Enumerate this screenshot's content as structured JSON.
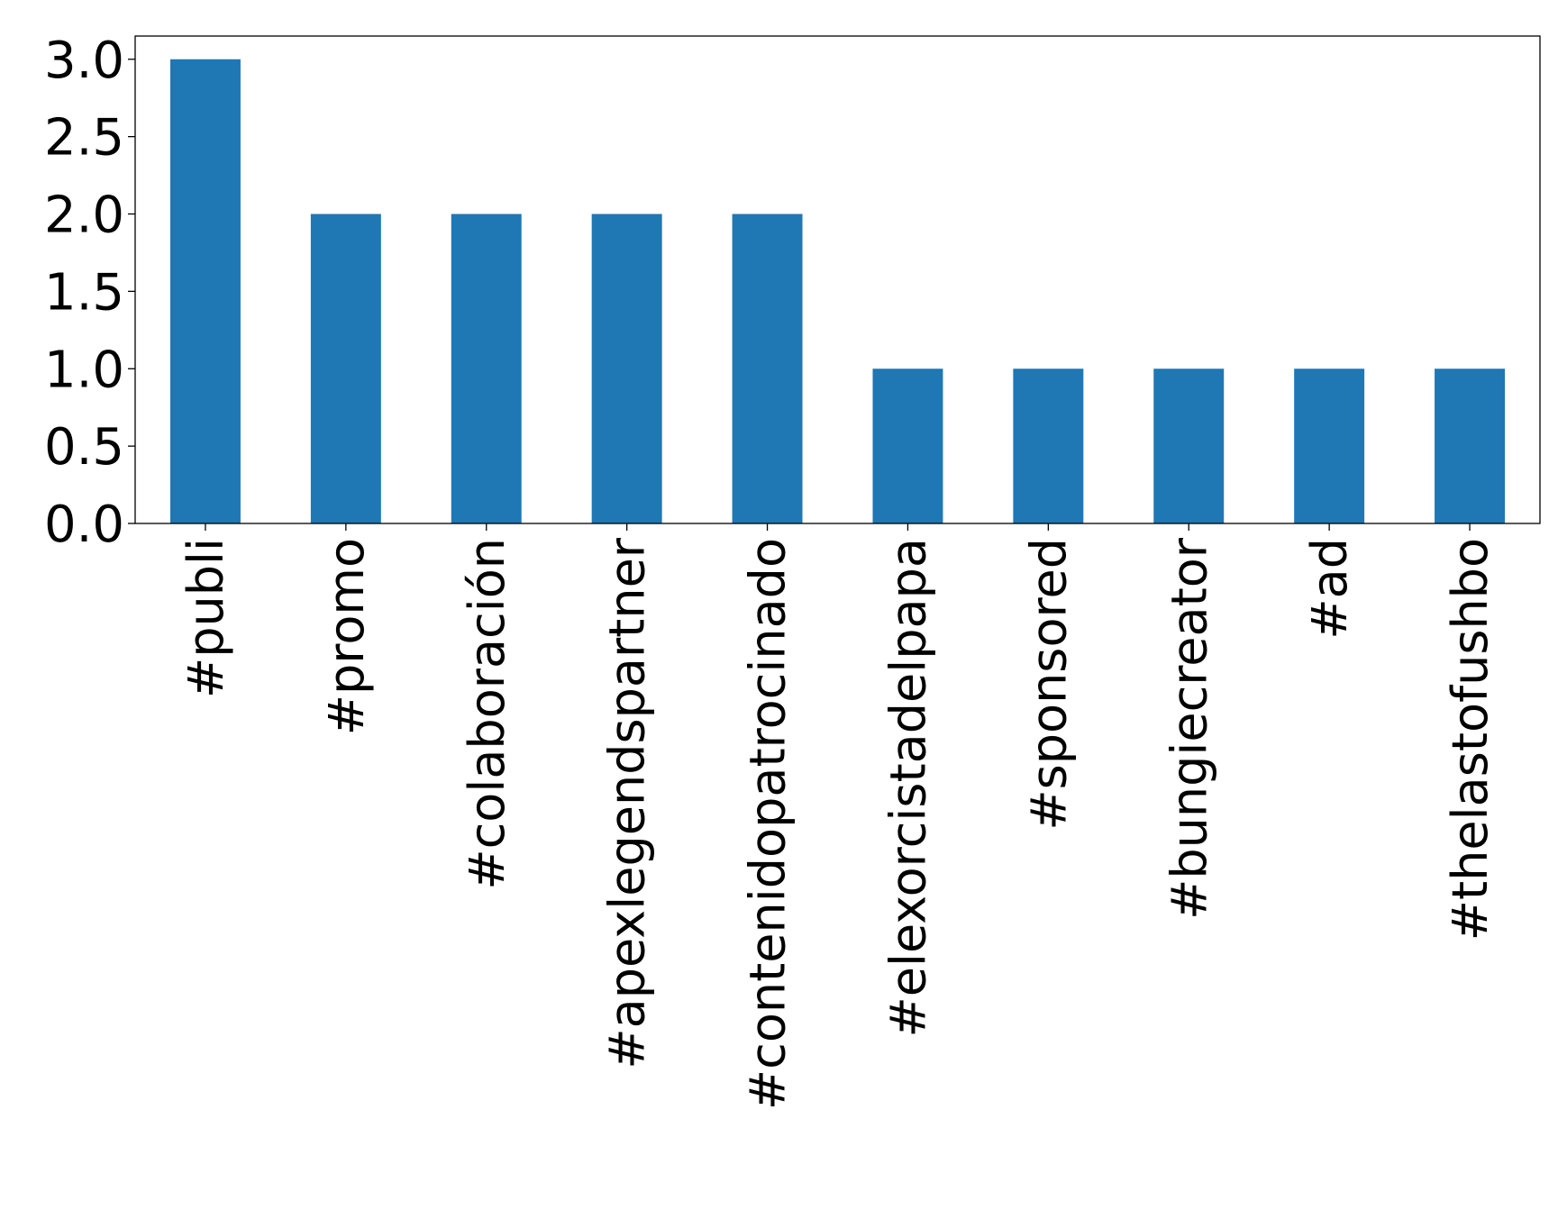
{
  "chart_data": {
    "type": "bar",
    "categories": [
      "#publi",
      "#promo",
      "#colaboración",
      "#apexlegendspartner",
      "#contenidopatrocinado",
      "#elexorcistadelpapa",
      "#sponsored",
      "#bungiecreator",
      "#ad",
      "#thelastofushbo"
    ],
    "values": [
      3,
      2,
      2,
      2,
      2,
      1,
      1,
      1,
      1,
      1
    ],
    "ylim": [
      0,
      3.15
    ],
    "yticks": [
      "0.0",
      "0.5",
      "1.0",
      "1.5",
      "2.0",
      "2.5",
      "3.0"
    ],
    "title": "",
    "xlabel": "",
    "ylabel": "",
    "bar_color": "#1f77b4",
    "grid": false,
    "legend": "none"
  }
}
